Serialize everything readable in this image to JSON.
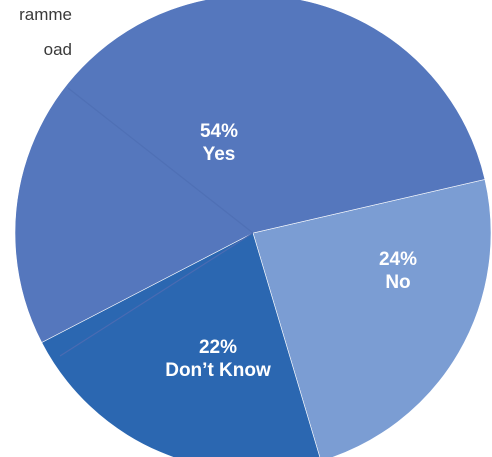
{
  "caption_lines": [
    "ramme",
    "oad"
  ],
  "chart_data": {
    "type": "pie",
    "slices": [
      {
        "label": "Yes",
        "value": 54,
        "display": "54%",
        "color": "#5577bd"
      },
      {
        "label": "No",
        "value": 24,
        "display": "24%",
        "color": "#7b9dd3"
      },
      {
        "label": "Don’t Know",
        "value": 22,
        "display": "22%",
        "color": "#2b67b1"
      }
    ],
    "legend": "none"
  }
}
